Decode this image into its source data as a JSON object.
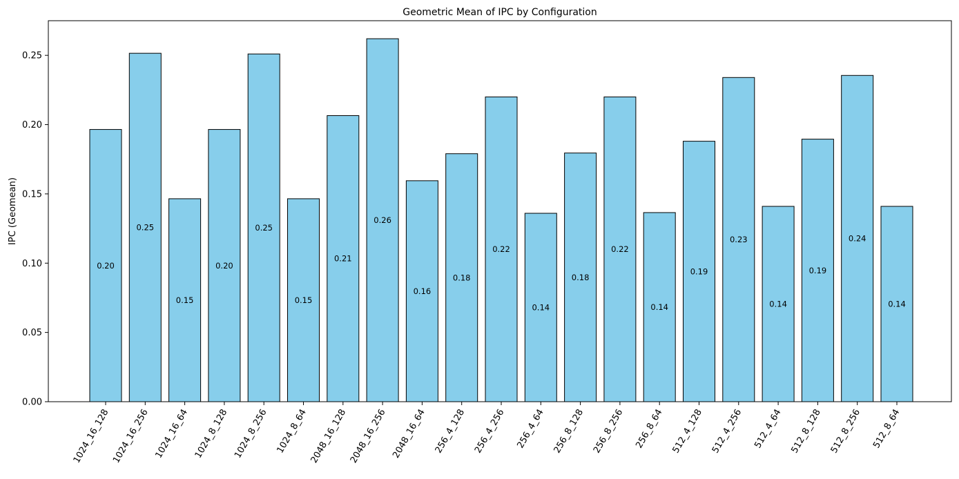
{
  "chart_data": {
    "type": "bar",
    "title": "Geometric Mean of IPC by Configuration",
    "xlabel": "",
    "ylabel": "IPC (Geomean)",
    "ylim": [
      0,
      0.275
    ],
    "yticks": [
      "0.00",
      "0.05",
      "0.10",
      "0.15",
      "0.20",
      "0.25"
    ],
    "grid": false,
    "bar_color": "#87CEEB",
    "edge_color": "#000000",
    "categories": [
      "1024_16_128",
      "1024_16_256",
      "1024_16_64",
      "1024_8_128",
      "1024_8_256",
      "1024_8_64",
      "2048_16_128",
      "2048_16_256",
      "2048_16_64",
      "256_4_128",
      "256_4_256",
      "256_4_64",
      "256_8_128",
      "256_8_256",
      "256_8_64",
      "512_4_128",
      "512_4_256",
      "512_4_64",
      "512_8_128",
      "512_8_256",
      "512_8_64"
    ],
    "values": [
      0.1965,
      0.2515,
      0.1465,
      0.1965,
      0.251,
      0.1465,
      0.2065,
      0.262,
      0.1595,
      0.179,
      0.22,
      0.136,
      0.1795,
      0.22,
      0.1365,
      0.188,
      0.234,
      0.141,
      0.1895,
      0.2355,
      0.141
    ],
    "data_labels": [
      "0.20",
      "0.25",
      "0.15",
      "0.20",
      "0.25",
      "0.15",
      "0.21",
      "0.26",
      "0.16",
      "0.18",
      "0.22",
      "0.14",
      "0.18",
      "0.22",
      "0.14",
      "0.19",
      "0.23",
      "0.14",
      "0.19",
      "0.24",
      "0.14"
    ]
  }
}
